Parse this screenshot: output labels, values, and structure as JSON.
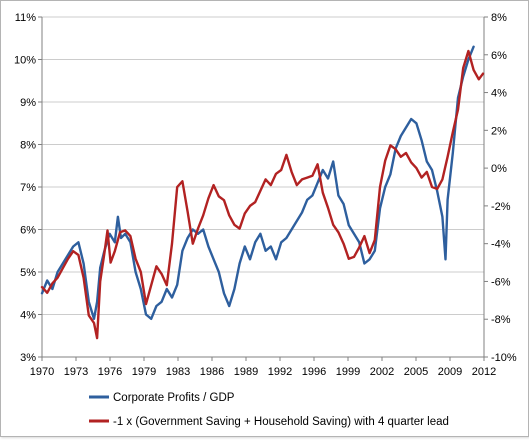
{
  "chart_data": {
    "type": "line",
    "title": "",
    "xlabel": "",
    "ylabel": "",
    "x_ticks": [
      "1970",
      "1973",
      "1976",
      "1979",
      "1983",
      "1986",
      "1989",
      "1992",
      "1996",
      "1999",
      "2002",
      "2005",
      "2009",
      "2012"
    ],
    "x_range": [
      1970,
      2012.5
    ],
    "y_left": {
      "range": [
        3,
        11
      ],
      "ticks": [
        "3%",
        "4%",
        "5%",
        "6%",
        "7%",
        "8%",
        "9%",
        "10%",
        "11%"
      ]
    },
    "y_right": {
      "range": [
        -10,
        8
      ],
      "ticks": [
        "-10%",
        "-8%",
        "-6%",
        "-4%",
        "-2%",
        "0%",
        "2%",
        "4%",
        "6%",
        "8%"
      ]
    },
    "grid": "horizontal",
    "legend_position": "bottom",
    "series": [
      {
        "name": "Corporate Profits / GDP",
        "axis": "left",
        "color": "#2e5f9e",
        "points": [
          [
            1970.0,
            4.5
          ],
          [
            1970.5,
            4.8
          ],
          [
            1971.0,
            4.6
          ],
          [
            1971.5,
            5.0
          ],
          [
            1972.0,
            5.2
          ],
          [
            1972.5,
            5.4
          ],
          [
            1973.0,
            5.6
          ],
          [
            1973.5,
            5.7
          ],
          [
            1974.0,
            5.2
          ],
          [
            1974.5,
            4.3
          ],
          [
            1975.0,
            3.9
          ],
          [
            1975.3,
            4.3
          ],
          [
            1975.6,
            5.1
          ],
          [
            1976.0,
            5.5
          ],
          [
            1976.5,
            5.9
          ],
          [
            1977.0,
            5.7
          ],
          [
            1977.3,
            6.3
          ],
          [
            1977.6,
            5.8
          ],
          [
            1978.0,
            5.9
          ],
          [
            1978.5,
            5.7
          ],
          [
            1979.0,
            5.0
          ],
          [
            1979.5,
            4.6
          ],
          [
            1980.0,
            4.0
          ],
          [
            1980.5,
            3.9
          ],
          [
            1981.0,
            4.2
          ],
          [
            1981.5,
            4.3
          ],
          [
            1982.0,
            4.6
          ],
          [
            1982.5,
            4.4
          ],
          [
            1983.0,
            4.7
          ],
          [
            1983.5,
            5.5
          ],
          [
            1984.0,
            5.8
          ],
          [
            1984.5,
            6.0
          ],
          [
            1985.0,
            5.9
          ],
          [
            1985.5,
            6.0
          ],
          [
            1986.0,
            5.6
          ],
          [
            1986.5,
            5.3
          ],
          [
            1987.0,
            5.0
          ],
          [
            1987.5,
            4.5
          ],
          [
            1988.0,
            4.2
          ],
          [
            1988.5,
            4.6
          ],
          [
            1989.0,
            5.2
          ],
          [
            1989.5,
            5.6
          ],
          [
            1990.0,
            5.3
          ],
          [
            1990.5,
            5.7
          ],
          [
            1991.0,
            5.9
          ],
          [
            1991.5,
            5.5
          ],
          [
            1992.0,
            5.6
          ],
          [
            1992.5,
            5.3
          ],
          [
            1993.0,
            5.7
          ],
          [
            1993.5,
            5.8
          ],
          [
            1994.0,
            6.0
          ],
          [
            1994.5,
            6.2
          ],
          [
            1995.0,
            6.4
          ],
          [
            1995.5,
            6.7
          ],
          [
            1996.0,
            6.8
          ],
          [
            1996.5,
            7.1
          ],
          [
            1997.0,
            7.4
          ],
          [
            1997.5,
            7.2
          ],
          [
            1998.0,
            7.6
          ],
          [
            1998.5,
            6.8
          ],
          [
            1999.0,
            6.6
          ],
          [
            1999.5,
            6.1
          ],
          [
            2000.0,
            5.9
          ],
          [
            2000.5,
            5.7
          ],
          [
            2001.0,
            5.2
          ],
          [
            2001.5,
            5.3
          ],
          [
            2002.0,
            5.5
          ],
          [
            2002.5,
            6.5
          ],
          [
            2003.0,
            7.0
          ],
          [
            2003.5,
            7.3
          ],
          [
            2004.0,
            7.9
          ],
          [
            2004.5,
            8.2
          ],
          [
            2005.0,
            8.4
          ],
          [
            2005.5,
            8.6
          ],
          [
            2006.0,
            8.5
          ],
          [
            2006.5,
            8.1
          ],
          [
            2007.0,
            7.6
          ],
          [
            2007.5,
            7.4
          ],
          [
            2008.0,
            6.9
          ],
          [
            2008.5,
            6.3
          ],
          [
            2008.8,
            5.3
          ],
          [
            2009.0,
            6.7
          ],
          [
            2009.5,
            7.8
          ],
          [
            2010.0,
            9.1
          ],
          [
            2010.5,
            9.6
          ],
          [
            2011.0,
            10.0
          ],
          [
            2011.5,
            10.3
          ]
        ]
      },
      {
        "name": "-1 x (Government Saving + Household Saving) with 4 quarter lead",
        "axis": "right",
        "color": "#b22222",
        "points": [
          [
            1970.0,
            -6.3
          ],
          [
            1970.5,
            -6.6
          ],
          [
            1971.0,
            -6.1
          ],
          [
            1971.5,
            -5.8
          ],
          [
            1972.0,
            -5.3
          ],
          [
            1972.5,
            -4.8
          ],
          [
            1973.0,
            -4.4
          ],
          [
            1973.5,
            -4.6
          ],
          [
            1974.0,
            -5.8
          ],
          [
            1974.5,
            -7.8
          ],
          [
            1975.0,
            -8.2
          ],
          [
            1975.3,
            -9.0
          ],
          [
            1975.6,
            -6.0
          ],
          [
            1976.0,
            -4.5
          ],
          [
            1976.3,
            -3.3
          ],
          [
            1976.6,
            -5.0
          ],
          [
            1977.0,
            -4.4
          ],
          [
            1977.5,
            -3.4
          ],
          [
            1978.0,
            -3.3
          ],
          [
            1978.5,
            -3.6
          ],
          [
            1979.0,
            -4.8
          ],
          [
            1979.5,
            -5.5
          ],
          [
            1980.0,
            -7.2
          ],
          [
            1980.5,
            -6.2
          ],
          [
            1981.0,
            -5.2
          ],
          [
            1981.5,
            -5.6
          ],
          [
            1982.0,
            -6.2
          ],
          [
            1982.5,
            -4.0
          ],
          [
            1983.0,
            -1.0
          ],
          [
            1983.5,
            -0.7
          ],
          [
            1984.0,
            -2.3
          ],
          [
            1984.5,
            -4.0
          ],
          [
            1985.0,
            -3.2
          ],
          [
            1985.5,
            -2.5
          ],
          [
            1986.0,
            -1.6
          ],
          [
            1986.5,
            -0.9
          ],
          [
            1987.0,
            -1.5
          ],
          [
            1987.5,
            -1.7
          ],
          [
            1988.0,
            -2.5
          ],
          [
            1988.5,
            -3.0
          ],
          [
            1989.0,
            -3.2
          ],
          [
            1989.5,
            -2.4
          ],
          [
            1990.0,
            -2.0
          ],
          [
            1990.5,
            -1.8
          ],
          [
            1991.0,
            -1.2
          ],
          [
            1991.5,
            -0.6
          ],
          [
            1992.0,
            -0.9
          ],
          [
            1992.5,
            -0.3
          ],
          [
            1993.0,
            -0.1
          ],
          [
            1993.5,
            0.7
          ],
          [
            1994.0,
            -0.2
          ],
          [
            1994.5,
            -0.9
          ],
          [
            1995.0,
            -0.6
          ],
          [
            1995.5,
            -0.5
          ],
          [
            1996.0,
            -0.4
          ],
          [
            1996.5,
            0.2
          ],
          [
            1997.0,
            -1.3
          ],
          [
            1997.5,
            -2.1
          ],
          [
            1998.0,
            -3.0
          ],
          [
            1998.5,
            -3.4
          ],
          [
            1999.0,
            -4.0
          ],
          [
            1999.5,
            -4.8
          ],
          [
            2000.0,
            -4.7
          ],
          [
            2000.5,
            -4.2
          ],
          [
            2001.0,
            -3.6
          ],
          [
            2001.5,
            -4.5
          ],
          [
            2002.0,
            -3.8
          ],
          [
            2002.5,
            -1.0
          ],
          [
            2003.0,
            0.4
          ],
          [
            2003.5,
            1.2
          ],
          [
            2004.0,
            1.0
          ],
          [
            2004.5,
            0.6
          ],
          [
            2005.0,
            0.8
          ],
          [
            2005.5,
            0.3
          ],
          [
            2006.0,
            0.0
          ],
          [
            2006.5,
            -0.5
          ],
          [
            2007.0,
            -0.2
          ],
          [
            2007.5,
            -1.0
          ],
          [
            2008.0,
            -1.1
          ],
          [
            2008.5,
            -0.6
          ],
          [
            2009.0,
            0.6
          ],
          [
            2009.5,
            1.9
          ],
          [
            2010.0,
            3.1
          ],
          [
            2010.5,
            5.3
          ],
          [
            2011.0,
            6.2
          ],
          [
            2011.5,
            5.2
          ],
          [
            2012.0,
            4.7
          ],
          [
            2012.4,
            5.0
          ]
        ]
      }
    ]
  }
}
